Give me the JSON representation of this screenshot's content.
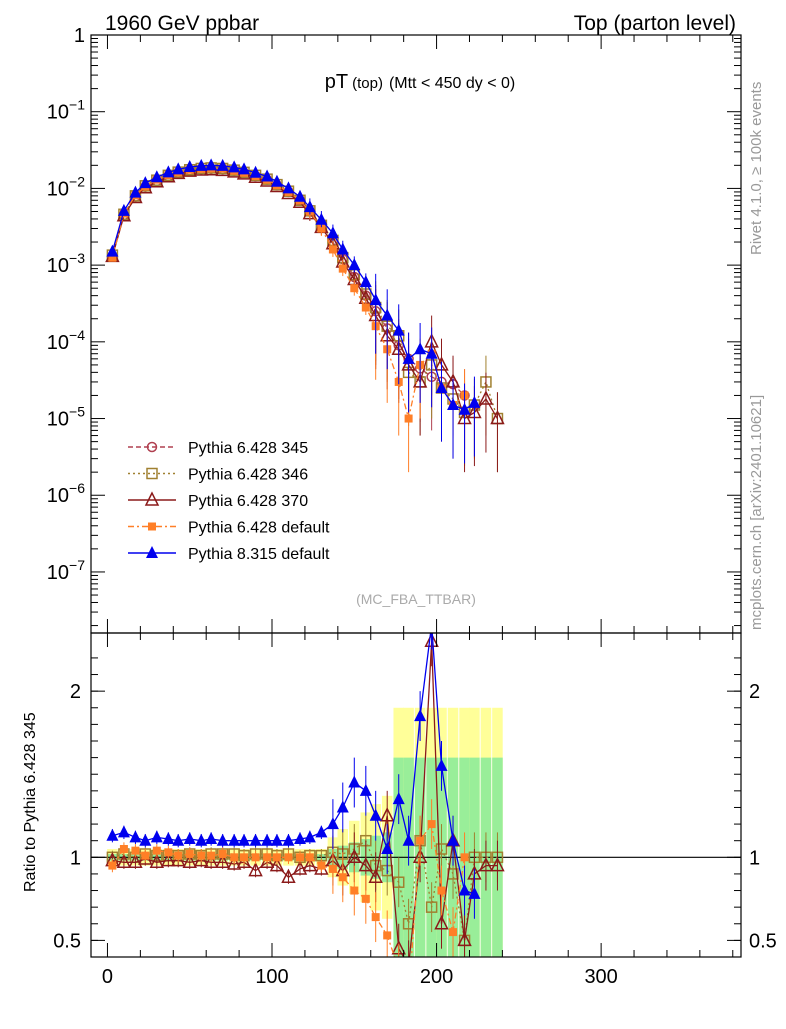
{
  "header": {
    "left": "1960 GeV ppbar",
    "right": "Top (parton level)"
  },
  "side_labels": {
    "right_top": "Rivet 4.1.0, ≥ 100k events",
    "right_bottom": "mcplots.cern.ch [arXiv:2401.10621]"
  },
  "watermark": "(MC_FBA_TTBAR)",
  "chart_data": [
    {
      "type": "line",
      "panel": "main",
      "title": "pT",
      "title_sub": "(top)",
      "title_cond": "(Mtt < 450 dy < 0)",
      "yscale": "log",
      "xlim": [
        -10,
        385
      ],
      "ylim": [
        1.6e-08,
        1
      ],
      "ytick_exponents": [
        -7,
        -6,
        -5,
        -4,
        -3,
        -2,
        -1,
        0
      ],
      "legend_position": "lower-left",
      "x": [
        3,
        10,
        17,
        23,
        30,
        37,
        43,
        50,
        57,
        63,
        70,
        77,
        83,
        90,
        97,
        103,
        110,
        117,
        123,
        130,
        137,
        143,
        150,
        157,
        163,
        170,
        177,
        183,
        190,
        197,
        203,
        210,
        217,
        223,
        230,
        237
      ],
      "series": [
        {
          "name": "Pythia 6.428 345",
          "color": "#b04050",
          "style": "open-circle",
          "dash": "5,3",
          "values": [
            0.0013,
            0.0045,
            0.0078,
            0.0105,
            0.0125,
            0.0145,
            0.016,
            0.0172,
            0.0178,
            0.018,
            0.0178,
            0.017,
            0.016,
            0.0145,
            0.013,
            0.011,
            0.009,
            0.007,
            0.005,
            0.0033,
            0.002,
            0.0012,
            0.0007,
            0.0004,
            0.00025,
            0.00015,
            9e-05,
            6e-05,
            4.5e-05,
            3.5e-05,
            3e-05,
            2.8e-05,
            2e-05,
            null,
            null,
            null
          ]
        },
        {
          "name": "Pythia 6.428 346",
          "color": "#a08030",
          "style": "open-square",
          "dash": "2,3",
          "values": [
            0.00135,
            0.0046,
            0.008,
            0.0108,
            0.0128,
            0.0148,
            0.0163,
            0.0175,
            0.0182,
            0.0185,
            0.0182,
            0.0173,
            0.0162,
            0.0148,
            0.0132,
            0.0112,
            0.0092,
            0.007,
            0.0051,
            0.0033,
            0.0021,
            0.00125,
            0.00075,
            0.00042,
            0.00028,
            0.00016,
            0.00012,
            4e-05,
            3e-05,
            5e-05,
            2.5e-05,
            1.8e-05,
            1.2e-05,
            1.5e-05,
            3e-05,
            1e-05
          ]
        },
        {
          "name": "Pythia 6.428 370",
          "color": "#8b1a1a",
          "style": "open-triangle",
          "dash": "",
          "values": [
            0.0013,
            0.0044,
            0.0076,
            0.0102,
            0.0122,
            0.0142,
            0.0157,
            0.0168,
            0.0174,
            0.0175,
            0.0172,
            0.0164,
            0.0155,
            0.014,
            0.0125,
            0.0106,
            0.0086,
            0.0066,
            0.0047,
            0.0031,
            0.0019,
            0.0011,
            0.00065,
            0.00037,
            0.00022,
            0.00012,
            8e-05,
            5e-05,
            3e-05,
            0.0001,
            5e-05,
            3e-05,
            1e-05,
            1.2e-05,
            1.8e-05,
            1e-05
          ]
        },
        {
          "name": "Pythia 6.428 default",
          "color": "#ff7f27",
          "style": "filled-square",
          "dash": "6,3,2,3",
          "values": [
            0.00125,
            0.0047,
            0.0081,
            0.0106,
            0.013,
            0.0149,
            0.0162,
            0.0175,
            0.018,
            0.0182,
            0.0182,
            0.017,
            0.016,
            0.0145,
            0.013,
            0.011,
            0.009,
            0.007,
            0.005,
            0.003,
            0.0016,
            0.0009,
            0.0005,
            0.00028,
            0.00016,
            8e-05,
            3e-05,
            1e-05,
            5e-05,
            7e-05,
            2.5e-05,
            1.5e-05,
            2e-05,
            null,
            null,
            null
          ]
        },
        {
          "name": "Pythia 8.315 default",
          "color": "#0000ee",
          "style": "filled-triangle",
          "dash": "",
          "values": [
            0.0015,
            0.0051,
            0.0088,
            0.0117,
            0.014,
            0.0162,
            0.0177,
            0.019,
            0.0197,
            0.02,
            0.0197,
            0.0188,
            0.0177,
            0.016,
            0.0143,
            0.0122,
            0.01,
            0.0078,
            0.0057,
            0.0039,
            0.0026,
            0.0016,
            0.001,
            0.0006,
            0.00035,
            0.00022,
            0.00014,
            6e-05,
            8e-05,
            7e-05,
            2.5e-05,
            1.5e-05,
            1.3e-05,
            1.6e-05,
            null,
            null
          ]
        }
      ]
    },
    {
      "type": "line",
      "panel": "ratio",
      "ylabel": "Ratio to Pythia 6.428 345",
      "xlim": [
        -10,
        385
      ],
      "ylim": [
        0.4,
        2.35
      ],
      "xticks": [
        0,
        100,
        200,
        300
      ],
      "xtick_labels": [
        "0",
        "100",
        "200",
        "300"
      ],
      "yticks": [
        0.5,
        1,
        2
      ],
      "ytick_labels": [
        "0.5",
        "1",
        "2"
      ],
      "x": [
        3,
        10,
        17,
        23,
        30,
        37,
        43,
        50,
        57,
        63,
        70,
        77,
        83,
        90,
        97,
        103,
        110,
        117,
        123,
        130,
        137,
        143,
        150,
        157,
        163,
        170,
        177,
        183,
        190,
        197,
        203,
        210,
        217,
        223,
        230,
        237
      ],
      "series": [
        {
          "name": "Pythia 6.428 346",
          "values": [
            1.0,
            1.02,
            1.0,
            1.02,
            1.01,
            1.01,
            1.01,
            1.02,
            1.01,
            1.02,
            1.02,
            1.02,
            1.01,
            1.02,
            1.02,
            1.01,
            1.02,
            1.0,
            1.01,
            1.01,
            1.03,
            1.02,
            1.05,
            1.1,
            0.95,
            0.92,
            0.85,
            0.6,
            1.1,
            0.7,
            1.05,
            0.9,
            0.5,
            1.0,
            1.0,
            1.0
          ]
        },
        {
          "name": "Pythia 6.428 370",
          "values": [
            0.98,
            0.97,
            0.97,
            0.99,
            0.97,
            0.98,
            0.98,
            0.97,
            0.98,
            0.97,
            0.97,
            0.96,
            0.97,
            0.92,
            0.97,
            0.95,
            0.88,
            0.93,
            0.95,
            0.93,
            0.98,
            0.92,
            1.0,
            0.95,
            0.88,
            1.25,
            0.45,
            0.35,
            1.0,
            2.3,
            0.6,
            1.1,
            0.5,
            0.9,
            0.95,
            0.95
          ]
        },
        {
          "name": "Pythia 6.428 default",
          "values": [
            0.95,
            1.05,
            1.04,
            1.01,
            1.04,
            1.03,
            1.01,
            1.02,
            1.01,
            1.01,
            1.02,
            1.0,
            1.0,
            1.0,
            1.0,
            1.0,
            1.0,
            1.0,
            1.0,
            0.95,
            0.93,
            0.88,
            0.8,
            0.75,
            0.64,
            0.53,
            0.33,
            0.17,
            1.1,
            1.2,
            0.8,
            0.55,
            1.0,
            null,
            null,
            null
          ]
        },
        {
          "name": "Pythia 8.315 default",
          "values": [
            1.13,
            1.15,
            1.12,
            1.1,
            1.12,
            1.11,
            1.1,
            1.11,
            1.1,
            1.11,
            1.1,
            1.1,
            1.1,
            1.1,
            1.1,
            1.1,
            1.1,
            1.11,
            1.12,
            1.15,
            1.2,
            1.3,
            1.45,
            1.4,
            1.25,
            1.05,
            1.35,
            1.1,
            1.85,
            2.4,
            1.55,
            1.1,
            0.8,
            0.78,
            null,
            null
          ]
        }
      ]
    }
  ]
}
